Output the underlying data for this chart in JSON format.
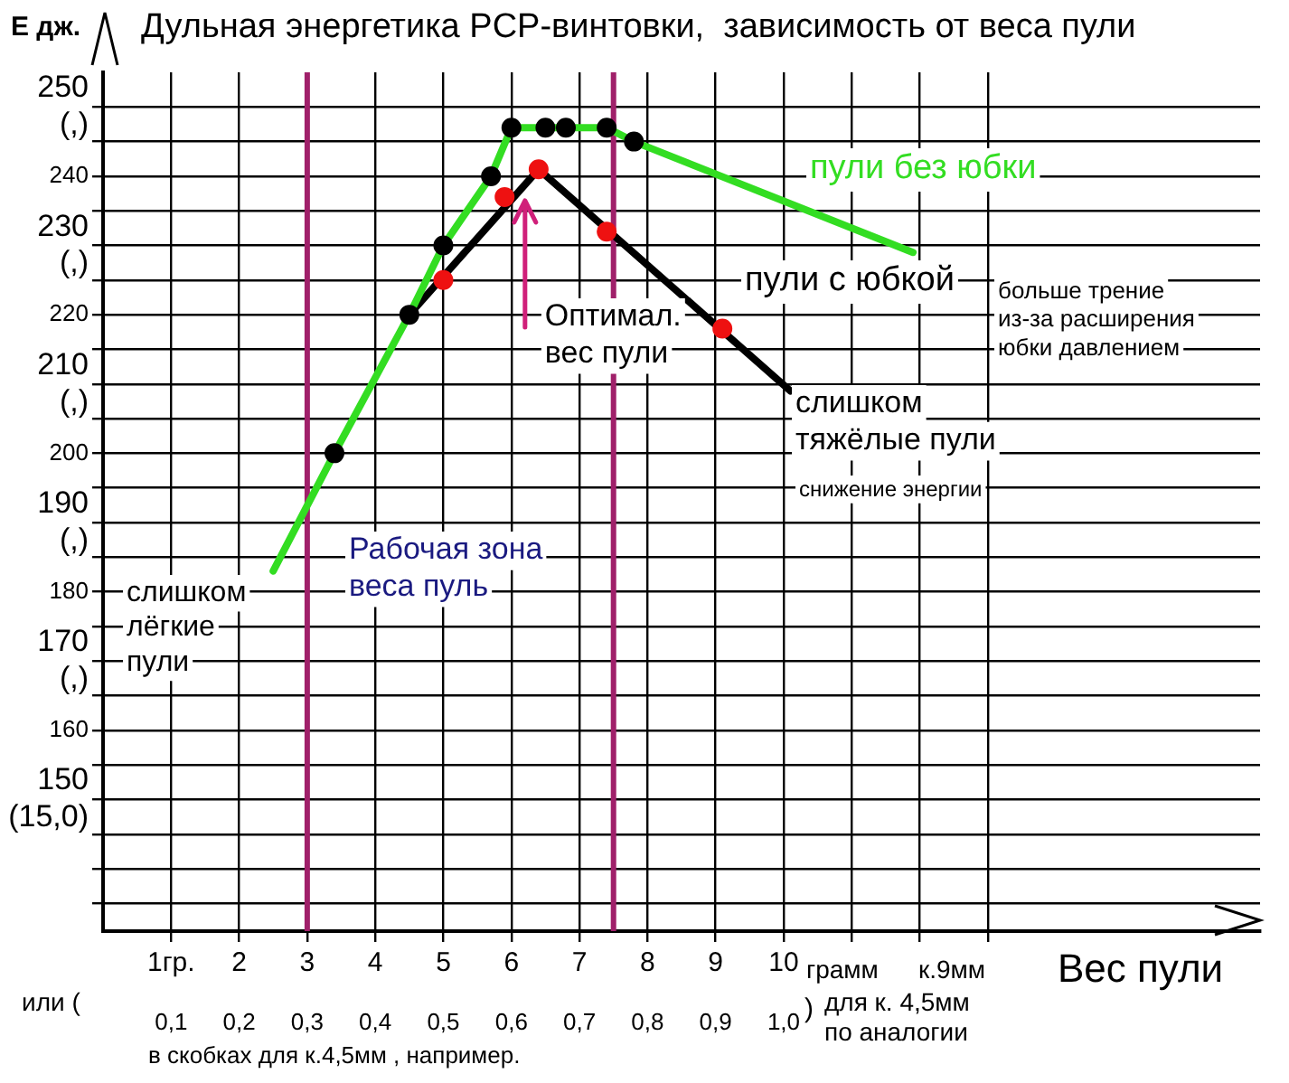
{
  "chart_data": {
    "type": "line",
    "title": "Дульная энергетика PCP-винтовки,  зависимость от веса пули",
    "ylabel": "E дж.",
    "xlabel": "Вес пули",
    "xlim": [
      0,
      17
    ],
    "ylim": [
      131,
      255
    ],
    "xticks": [
      {
        "value": 1,
        "label": "1гр."
      },
      2,
      3,
      4,
      5,
      6,
      7,
      8,
      9,
      10,
      {
        "value": 11,
        "label": null
      },
      {
        "value": 12,
        "label": null
      },
      {
        "value": 13,
        "label": null
      }
    ],
    "x2lim": [
      0,
      1.7
    ],
    "x2ticks": [
      {
        "value": 0.1,
        "label": "0,1"
      },
      {
        "value": 0.2,
        "label": "0,2"
      },
      {
        "value": 0.3,
        "label": "0,3"
      },
      {
        "value": 0.4,
        "label": "0,4"
      },
      {
        "value": 0.5,
        "label": "0,5"
      },
      {
        "value": 0.6,
        "label": "0,6"
      },
      {
        "value": 0.7,
        "label": "0,7"
      },
      {
        "value": 0.8,
        "label": "0,8"
      },
      {
        "value": 0.9,
        "label": "0,9"
      },
      {
        "value": 1.0,
        "label": "1,0"
      }
    ],
    "yticks": [
      {
        "value": 135,
        "label": null
      },
      {
        "value": 140,
        "label": null
      },
      {
        "value": 145,
        "label": null
      },
      {
        "value": 150,
        "label": "150\n(15,0)"
      },
      {
        "value": 155,
        "label": null
      },
      160,
      {
        "value": 165,
        "label": null
      },
      {
        "value": 170,
        "label": "170\n(,)"
      },
      {
        "value": 175,
        "label": null
      },
      180,
      {
        "value": 185,
        "label": null
      },
      {
        "value": 190,
        "label": "190\n(,)"
      },
      {
        "value": 195,
        "label": null
      },
      200,
      {
        "value": 205,
        "label": null
      },
      {
        "value": 210,
        "label": "210\n(,)"
      },
      {
        "value": 215,
        "label": null
      },
      220,
      {
        "value": 225,
        "label": null
      },
      {
        "value": 230,
        "label": "230\n(,)"
      },
      {
        "value": 235,
        "label": null
      },
      240,
      {
        "value": 245,
        "label": null
      },
      {
        "value": 250,
        "label": "250\n(,)"
      }
    ],
    "grid": true,
    "series": [
      {
        "name": "пули без юбки",
        "type": "line",
        "color": "#33dd22",
        "marker": "none",
        "x": [
          2.5,
          3.4,
          4.5,
          5.0,
          5.7,
          6.0,
          6.5,
          6.8,
          7.4,
          7.8,
          11.9
        ],
        "values": [
          183,
          200,
          220,
          230,
          240,
          247,
          247,
          247,
          247,
          245,
          229
        ]
      },
      {
        "type": "scatter",
        "color": "#000000",
        "marker": "circle",
        "x": [
          3.4,
          4.5,
          5.0,
          5.7,
          6.0,
          6.5,
          6.8,
          7.4,
          7.8
        ],
        "values": [
          200,
          220,
          230,
          240,
          247,
          247,
          247,
          247,
          245
        ]
      },
      {
        "name": "пули с юбкой",
        "type": "line",
        "color": "#000000",
        "marker": "none",
        "x": [
          4.5,
          6.4,
          10.1
        ],
        "values": [
          220,
          241,
          209
        ]
      },
      {
        "type": "scatter",
        "color": "#ee1111",
        "marker": "circle",
        "x": [
          5.0,
          5.9,
          6.4,
          7.4,
          9.1
        ],
        "values": [
          225,
          237,
          241,
          232,
          218
        ]
      }
    ],
    "ref_lines": [
      {
        "axis": "x",
        "value": 3,
        "color": "#a0206a"
      },
      {
        "axis": "x",
        "value": 7.5,
        "color": "#a0206a"
      }
    ],
    "annotations": [
      {
        "text": "Оптимал.\nвес пули",
        "x": 6.2,
        "y": 237
      },
      "Рабочая зона\nвеса пуль",
      "слишком\nлёгкие\nпули",
      "слишком\nтяжёлые пули",
      "снижение энергии",
      "больше трение\nиз-за расширения\nюбки давлением",
      "или (",
      ")",
      "грамм",
      "к.9мм",
      "для к. 4,5мм\nпо аналогии",
      "в скобках для к.4,5мм , например."
    ]
  }
}
